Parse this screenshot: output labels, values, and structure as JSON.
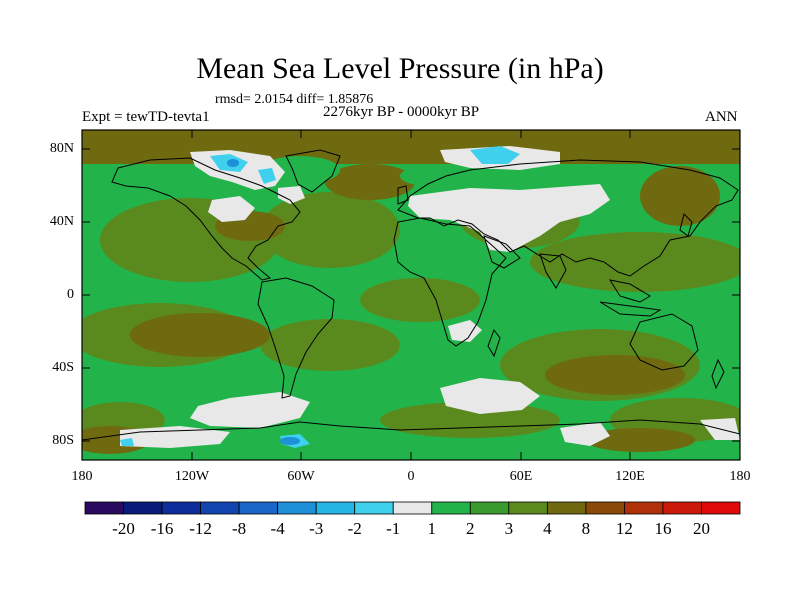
{
  "title": "Mean Sea Level Pressure (in hPa)",
  "stats_line": "rmsd= 2.0154  diff= 1.85876",
  "experiment": "Expt = tewTD-tevta1",
  "period": "2276kyr BP - 0000kyr BP",
  "season": "ANN",
  "lat_ticks": [
    "80N",
    "40N",
    "0",
    "40S",
    "80S"
  ],
  "lon_ticks": [
    "180",
    "120W",
    "60W",
    "0",
    "60E",
    "120E",
    "180"
  ],
  "colorbar": {
    "labels": [
      "-20",
      "-16",
      "-12",
      "-8",
      "-4",
      "-3",
      "-2",
      "-1",
      "1",
      "2",
      "3",
      "4",
      "8",
      "12",
      "16",
      "20"
    ],
    "colors": [
      "#2a0a5e",
      "#0a1a7a",
      "#0d2d9a",
      "#1245b0",
      "#1a66c8",
      "#1e90d8",
      "#25b5e5",
      "#3ed0ec",
      "#e8e8e8",
      "#22b44a",
      "#3a9a2e",
      "#5a8a1e",
      "#6f6a10",
      "#8a4a08",
      "#b0300a",
      "#cc1a0a",
      "#e00a0a"
    ]
  },
  "map_colors": {
    "ocean_base": "#22b44a",
    "medium": "#5a8a1e",
    "dark": "#6f6a10",
    "light": "#e8e8e8",
    "cyan": "#3ed0ec",
    "blue": "#1e90d8"
  }
}
